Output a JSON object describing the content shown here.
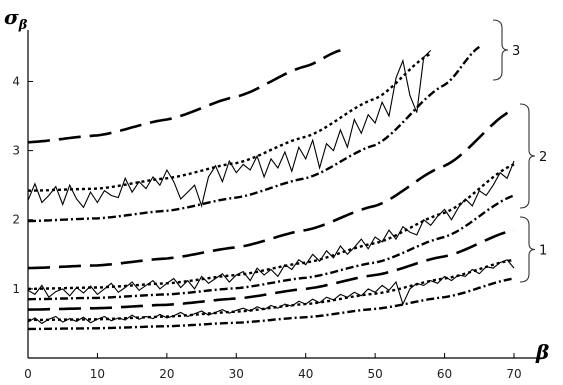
{
  "chart_data": {
    "type": "line",
    "xlabel": "β",
    "ylabel": "σ",
    "ylabel_sub": "β",
    "xlim": [
      0,
      70
    ],
    "ylim": [
      0,
      4.6
    ],
    "grid": false,
    "x_ticks": [
      0,
      10,
      20,
      30,
      40,
      50,
      60,
      70
    ],
    "y_ticks": [
      1,
      2,
      3,
      4
    ],
    "x_tick_labels": [
      "0",
      "10",
      "20",
      "30",
      "40",
      "50",
      "60",
      "70"
    ],
    "y_tick_labels": [
      "1",
      "2",
      "3",
      "4"
    ],
    "group_labels": [
      "3",
      "2",
      "1"
    ],
    "series": [
      {
        "group": "3",
        "style": "dashed",
        "x": [
          0,
          10,
          20,
          30,
          40,
          45
        ],
        "y": [
          3.12,
          3.22,
          3.45,
          3.78,
          4.22,
          4.45
        ]
      },
      {
        "group": "3",
        "style": "dotted",
        "x": [
          0,
          10,
          20,
          30,
          40,
          50,
          58
        ],
        "y": [
          2.42,
          2.45,
          2.6,
          2.82,
          3.2,
          3.75,
          4.4
        ]
      },
      {
        "group": "3",
        "style": "dashdot",
        "x": [
          0,
          10,
          20,
          30,
          40,
          50,
          60,
          65
        ],
        "y": [
          1.98,
          2.02,
          2.13,
          2.32,
          2.6,
          3.08,
          3.95,
          4.5
        ]
      },
      {
        "group": "3",
        "style": "noisy",
        "x": [
          0,
          1,
          2,
          3,
          4,
          5,
          6,
          7,
          8,
          9,
          10,
          11,
          12,
          13,
          14,
          15,
          16,
          17,
          18,
          19,
          20,
          21,
          22,
          23,
          24,
          25,
          26,
          27,
          28,
          29,
          30,
          31,
          32,
          33,
          34,
          35,
          36,
          37,
          38,
          39,
          40,
          41,
          42,
          43,
          44,
          45,
          46,
          47,
          48,
          49,
          50,
          51,
          52,
          53,
          54,
          55,
          56,
          57,
          58
        ],
        "y": [
          2.28,
          2.52,
          2.25,
          2.35,
          2.48,
          2.22,
          2.5,
          2.3,
          2.18,
          2.4,
          2.25,
          2.42,
          2.35,
          2.32,
          2.6,
          2.4,
          2.55,
          2.45,
          2.62,
          2.5,
          2.72,
          2.55,
          2.3,
          2.4,
          2.5,
          2.2,
          2.62,
          2.78,
          2.55,
          2.85,
          2.68,
          2.8,
          2.72,
          2.92,
          2.62,
          2.88,
          2.75,
          2.98,
          2.7,
          3.05,
          2.88,
          3.15,
          2.75,
          3.1,
          3.0,
          3.3,
          3.05,
          3.45,
          3.25,
          3.52,
          3.4,
          3.7,
          3.5,
          4.05,
          4.3,
          3.8,
          3.55,
          4.35,
          4.45
        ]
      },
      {
        "group": "2",
        "style": "dashed",
        "x": [
          0,
          10,
          20,
          30,
          40,
          50,
          60,
          70
        ],
        "y": [
          1.3,
          1.34,
          1.44,
          1.6,
          1.85,
          2.2,
          2.78,
          3.6
        ]
      },
      {
        "group": "2",
        "style": "dotted",
        "x": [
          0,
          10,
          20,
          30,
          40,
          50,
          60,
          70
        ],
        "y": [
          1.0,
          1.02,
          1.08,
          1.2,
          1.38,
          1.66,
          2.1,
          2.8
        ]
      },
      {
        "group": "2",
        "style": "dashdot",
        "x": [
          0,
          10,
          20,
          30,
          40,
          50,
          60,
          70
        ],
        "y": [
          0.85,
          0.87,
          0.92,
          1.01,
          1.16,
          1.38,
          1.75,
          2.35
        ]
      },
      {
        "group": "2",
        "style": "noisy",
        "x": [
          0,
          1,
          2,
          3,
          4,
          5,
          6,
          7,
          8,
          9,
          10,
          11,
          12,
          13,
          14,
          15,
          16,
          17,
          18,
          19,
          20,
          21,
          22,
          23,
          24,
          25,
          26,
          27,
          28,
          29,
          30,
          31,
          32,
          33,
          34,
          35,
          36,
          37,
          38,
          39,
          40,
          41,
          42,
          43,
          44,
          45,
          46,
          47,
          48,
          49,
          50,
          51,
          52,
          53,
          54,
          55,
          56,
          57,
          58,
          59,
          60,
          61,
          62,
          63,
          64,
          65,
          66,
          67,
          68,
          69,
          70
        ],
        "y": [
          0.98,
          0.92,
          1.05,
          0.88,
          0.96,
          1.0,
          0.9,
          1.02,
          0.94,
          1.04,
          0.92,
          1.0,
          1.08,
          0.95,
          1.02,
          1.1,
          0.98,
          1.05,
          1.12,
          1.0,
          1.08,
          1.15,
          1.02,
          1.12,
          1.0,
          1.18,
          1.08,
          1.15,
          1.22,
          1.1,
          1.2,
          1.25,
          1.12,
          1.3,
          1.2,
          1.28,
          1.18,
          1.35,
          1.28,
          1.42,
          1.35,
          1.5,
          1.4,
          1.55,
          1.45,
          1.62,
          1.5,
          1.6,
          1.72,
          1.58,
          1.75,
          1.68,
          1.85,
          1.72,
          1.9,
          1.82,
          1.78,
          2.0,
          1.92,
          2.05,
          2.15,
          2.0,
          2.18,
          2.3,
          2.2,
          2.42,
          2.35,
          2.5,
          2.68,
          2.6,
          2.85
        ]
      },
      {
        "group": "1",
        "style": "dashed",
        "x": [
          0,
          10,
          20,
          30,
          40,
          50,
          60,
          70
        ],
        "y": [
          0.7,
          0.72,
          0.77,
          0.86,
          1.0,
          1.2,
          1.47,
          1.85
        ]
      },
      {
        "group": "1",
        "style": "dotted",
        "x": [
          0,
          10,
          20,
          30,
          40,
          50,
          60,
          70
        ],
        "y": [
          0.55,
          0.56,
          0.6,
          0.67,
          0.78,
          0.93,
          1.15,
          1.42
        ]
      },
      {
        "group": "1",
        "style": "dashdot",
        "x": [
          0,
          10,
          20,
          30,
          40,
          50,
          60,
          70
        ],
        "y": [
          0.42,
          0.43,
          0.46,
          0.51,
          0.59,
          0.71,
          0.88,
          1.15
        ]
      },
      {
        "group": "1",
        "style": "noisy",
        "x": [
          0,
          1,
          2,
          3,
          4,
          5,
          6,
          7,
          8,
          9,
          10,
          11,
          12,
          13,
          14,
          15,
          16,
          17,
          18,
          19,
          20,
          21,
          22,
          23,
          24,
          25,
          26,
          27,
          28,
          29,
          30,
          31,
          32,
          33,
          34,
          35,
          36,
          37,
          38,
          39,
          40,
          41,
          42,
          43,
          44,
          45,
          46,
          47,
          48,
          49,
          50,
          51,
          52,
          53,
          54,
          55,
          56,
          57,
          58,
          59,
          60,
          61,
          62,
          63,
          64,
          65,
          66,
          67,
          68,
          69,
          70
        ],
        "y": [
          0.52,
          0.58,
          0.5,
          0.56,
          0.6,
          0.52,
          0.57,
          0.53,
          0.59,
          0.51,
          0.56,
          0.6,
          0.54,
          0.58,
          0.55,
          0.62,
          0.56,
          0.6,
          0.57,
          0.63,
          0.58,
          0.61,
          0.66,
          0.6,
          0.64,
          0.68,
          0.62,
          0.66,
          0.7,
          0.65,
          0.69,
          0.72,
          0.68,
          0.74,
          0.7,
          0.76,
          0.72,
          0.78,
          0.75,
          0.82,
          0.78,
          0.85,
          0.8,
          0.88,
          0.84,
          0.92,
          0.88,
          0.95,
          0.9,
          1.0,
          0.95,
          1.05,
          0.98,
          1.1,
          0.78,
          1.0,
          1.08,
          1.05,
          1.12,
          1.08,
          1.18,
          1.12,
          1.2,
          1.18,
          1.28,
          1.22,
          1.32,
          1.3,
          1.38,
          1.42,
          1.3
        ]
      }
    ]
  }
}
